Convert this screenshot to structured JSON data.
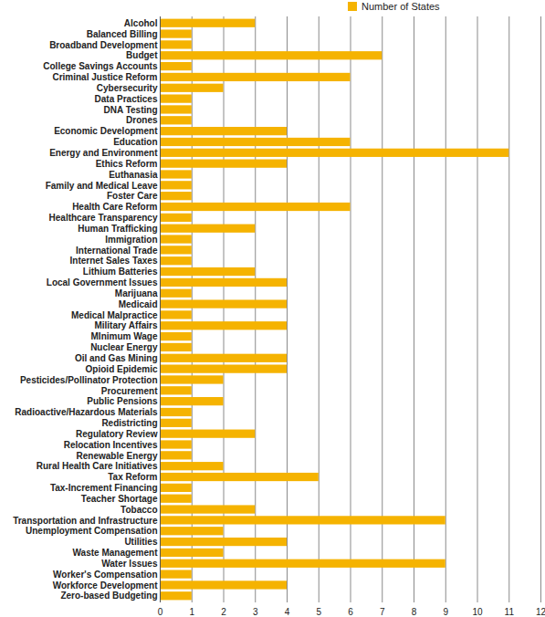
{
  "chart_data": {
    "type": "bar",
    "orientation": "horizontal",
    "categories": [
      "Alcohol",
      "Balanced Billing",
      "Broadband Development",
      "Budget",
      "College Savings Accounts",
      "Criminal Justice Reform",
      "Cybersecurity",
      "Data Practices",
      "DNA Testing",
      "Drones",
      "Economic Development",
      "Education",
      "Energy and Environment",
      "Ethics Reform",
      "Euthanasia",
      "Family and Medical Leave",
      "Foster Care",
      "Health Care Reform",
      "Healthcare Transparency",
      "Human Trafficking",
      "Immigration",
      "International Trade",
      "Internet Sales Taxes",
      "Lithium Batteries",
      "Local Government Issues",
      "Marijuana",
      "Medicaid",
      "Medical Malpractice",
      "Military Affairs",
      "MInimum Wage",
      "Nuclear Energy",
      "Oil and Gas Mining",
      "Opioid Epidemic",
      "Pesticides/Pollinator Protection",
      "Procurement",
      "Public Pensions",
      "Radioactive/Hazardous Materials",
      "Redistricting",
      "Regulatory Review",
      "Relocation Incentives",
      "Renewable Energy",
      "Rural Health Care Initiatives",
      "Tax Reform",
      "Tax-Increment Financing",
      "Teacher Shortage",
      "Tobacco",
      "Transportation and Infrastructure",
      "Unemployment Compensation",
      "Utilities",
      "Waste Management",
      "Water Issues",
      "Worker's Compensation",
      "Workforce Development",
      "Zero-based Budgeting"
    ],
    "series": [
      {
        "name": "Number of States",
        "color": "#f5b301",
        "values": [
          3,
          1,
          1,
          7,
          1,
          6,
          2,
          1,
          1,
          1,
          4,
          6,
          11,
          4,
          1,
          1,
          1,
          6,
          1,
          3,
          1,
          1,
          1,
          3,
          4,
          1,
          4,
          1,
          4,
          1,
          1,
          4,
          4,
          2,
          1,
          2,
          1,
          1,
          3,
          1,
          1,
          2,
          5,
          1,
          1,
          3,
          9,
          2,
          4,
          2,
          9,
          1,
          4,
          1
        ]
      }
    ],
    "xlim": [
      0,
      12
    ],
    "xticks": [
      0,
      1,
      2,
      3,
      4,
      5,
      6,
      7,
      8,
      9,
      10,
      11,
      12
    ],
    "grid": true,
    "legend": "top"
  }
}
